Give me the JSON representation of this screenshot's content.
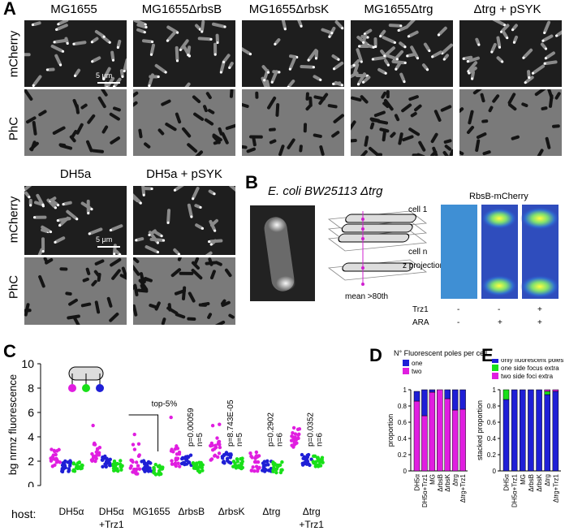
{
  "panels": {
    "A": {
      "letter": "A",
      "top_titles": [
        "MG1655",
        "MG1655ΔrbsB",
        "MG1655ΔrbsK",
        "MG1655Δtrg",
        "Δtrg + pSYK"
      ],
      "bottom_titles": [
        "DH5a",
        "DH5a + pSYK"
      ],
      "row_labels": [
        "mCherry",
        "PhC"
      ],
      "scalebar": "5 μm"
    },
    "B": {
      "letter": "B",
      "title": "E. coli BW25113 Δtrg",
      "diagram_labels": [
        "cell 1",
        "cell n",
        "z projection",
        "mean >80th"
      ],
      "heatmap_title": "RbsB-mCherry",
      "conditions": [
        {
          "name": "Trz1",
          "values": [
            "-",
            "-",
            "+"
          ]
        },
        {
          "name": "ARA",
          "values": [
            "-",
            "+",
            "+"
          ]
        }
      ]
    },
    "C": {
      "letter": "C",
      "ylabel": "bg nrmz fluorescence",
      "host_label": "host:",
      "yticks": [
        "0",
        "2",
        "4",
        "6",
        "8",
        "10"
      ],
      "annotation": "top-5%",
      "hosts": [
        "DH5α",
        "DH5α\n+Trz1",
        "MG1655",
        "ΔrbsB",
        "ΔrbsK",
        "Δtrg",
        "Δtrg\n+Trz1"
      ],
      "stats": [
        {
          "p": "p=0.00059",
          "n": "n=5"
        },
        {
          "p": "p=8.743E-05",
          "n": "n=5"
        },
        {
          "p": "p=0.2902",
          "n": "n=6"
        },
        {
          "p": "p=0.0352",
          "n": "n=6"
        }
      ]
    },
    "D": {
      "letter": "D",
      "title": "N° Fluorescent poles per cell",
      "legend": [
        "one",
        "two"
      ],
      "ylabel": "proportion",
      "yticks": [
        "0",
        "0.2",
        "0.4",
        "0.6",
        "0.8",
        "1"
      ],
      "categories": [
        "DH5α",
        "DH5α+Trz1",
        "MG",
        "ΔrbsB",
        "ΔrbsK",
        "Δtrg",
        "Δtrg+Trz1"
      ]
    },
    "E": {
      "letter": "E",
      "legend": [
        "only fluorescent poles",
        "one side focus extra",
        "two side foci extra"
      ],
      "ylabel": "stacked proportion",
      "yticks": [
        "0",
        "0.2",
        "0.4",
        "0.6",
        "0.8",
        "1"
      ],
      "categories": [
        "DH5α",
        "DH5α+Trz1",
        "MG",
        "ΔrbsB",
        "ΔrbsK",
        "Δtrg",
        "Δtrg+Trz1"
      ]
    }
  },
  "colors": {
    "blue": "#1f1fd6",
    "magenta": "#e01ee0",
    "green": "#19e019"
  },
  "chart_data": [
    {
      "type": "scatter",
      "ylabel": "bg nrmz fluorescence",
      "ylim": [
        0,
        10
      ],
      "categories": [
        "DH5α",
        "DH5α+Trz1",
        "MG1655",
        "ΔrbsB",
        "ΔrbsK",
        "Δtrg",
        "Δtrg+Trz1"
      ],
      "series": [
        {
          "name": "",
          "color": "#e01ee0",
          "medians": [
            2.1,
            2.6,
            1.6,
            2.2,
            2.7,
            1.8,
            3.8
          ]
        },
        {
          "name": "",
          "color": "#1f1fd6",
          "medians": [
            1.5,
            1.9,
            1.5,
            2.0,
            2.2,
            1.5,
            2.0
          ]
        },
        {
          "name": "",
          "color": "#19e019",
          "medians": [
            1.4,
            1.5,
            1.2,
            1.4,
            1.7,
            1.4,
            1.9
          ]
        }
      ]
    },
    {
      "type": "bar",
      "stacked": true,
      "ylabel": "proportion",
      "ylim": [
        0,
        1
      ],
      "categories": [
        "DH5α",
        "DH5α+Trz1",
        "MG",
        "ΔrbsB",
        "ΔrbsK",
        "Δtrg",
        "Δtrg+Trz1"
      ],
      "series": [
        {
          "name": "two",
          "values": [
            0.86,
            0.68,
            0.97,
            1.0,
            0.89,
            0.75,
            0.76
          ]
        },
        {
          "name": "one",
          "values": [
            0.12,
            0.32,
            0.03,
            0.0,
            0.11,
            0.25,
            0.24
          ]
        }
      ]
    },
    {
      "type": "bar",
      "stacked": true,
      "ylabel": "stacked proportion",
      "ylim": [
        0,
        1
      ],
      "categories": [
        "DH5α",
        "DH5α+Trz1",
        "MG",
        "ΔrbsB",
        "ΔrbsK",
        "Δtrg",
        "Δtrg+Trz1"
      ],
      "series": [
        {
          "name": "only fluorescent poles",
          "values": [
            0.88,
            1.0,
            1.0,
            1.0,
            1.0,
            0.94,
            0.98
          ]
        },
        {
          "name": "one side focus extra",
          "values": [
            0.12,
            0.0,
            0.0,
            0.0,
            0.0,
            0.04,
            0.0
          ]
        },
        {
          "name": "two side foci extra",
          "values": [
            0.0,
            0.0,
            0.0,
            0.0,
            0.0,
            0.02,
            0.02
          ]
        }
      ]
    }
  ]
}
